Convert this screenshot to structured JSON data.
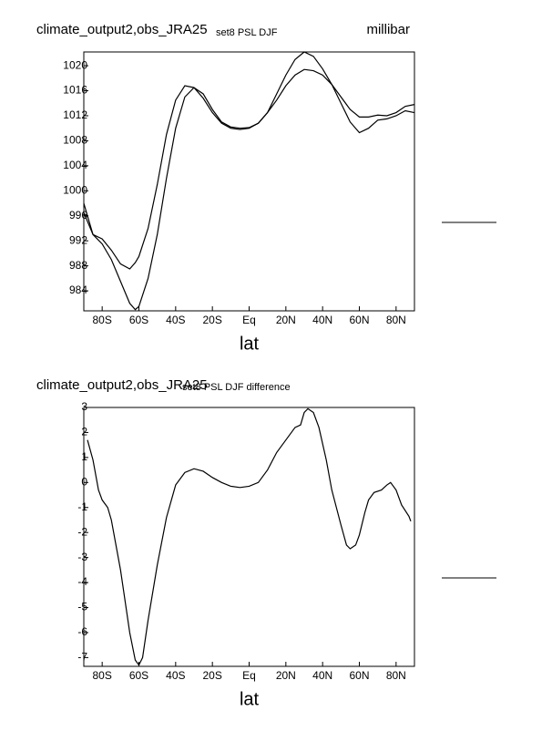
{
  "chart_data": [
    {
      "type": "line",
      "title": "climate_output2,obs_JRA25",
      "subtitle": "set8 PSL DJF",
      "units": "millibar",
      "x_label": "lat",
      "x": [
        -90,
        -85,
        -80,
        -75,
        -70,
        -65,
        -62,
        -60,
        -55,
        -50,
        -45,
        -40,
        -35,
        -30,
        -25,
        -20,
        -15,
        -10,
        -5,
        0,
        5,
        10,
        15,
        20,
        25,
        30,
        35,
        40,
        45,
        50,
        55,
        60,
        65,
        70,
        75,
        80,
        85,
        90
      ],
      "series": [
        {
          "color": "#000000",
          "values": [
            998,
            993,
            991.5,
            989,
            985.5,
            982,
            981,
            981.5,
            986,
            993,
            1002,
            1010,
            1015,
            1016.5,
            1015.5,
            1013,
            1011,
            1010.2,
            1010,
            1010.1,
            1010.8,
            1012.5,
            1015.5,
            1018.5,
            1021,
            1022.2,
            1021.5,
            1019.5,
            1017,
            1014,
            1011,
            1009.3,
            1010,
            1011.3,
            1011.5,
            1012,
            1012.8,
            1012.5
          ]
        },
        {
          "color": "#000000",
          "values": [
            996.5,
            993,
            992.3,
            990.5,
            988.3,
            987.5,
            988.5,
            989.5,
            994,
            1001,
            1009,
            1014.5,
            1016.8,
            1016.5,
            1014.8,
            1012.5,
            1010.8,
            1010,
            1009.8,
            1010,
            1010.8,
            1012.5,
            1014.5,
            1016.8,
            1018.5,
            1019.4,
            1019.2,
            1018.5,
            1017,
            1015,
            1013,
            1011.8,
            1011.8,
            1012.1,
            1012,
            1012.5,
            1013.5,
            1013.8
          ]
        }
      ],
      "xlim": [
        -90,
        90
      ],
      "xticks": [
        {
          "value": -80,
          "label": "80S"
        },
        {
          "value": -60,
          "label": "60S"
        },
        {
          "value": -40,
          "label": "40S"
        },
        {
          "value": -20,
          "label": "20S"
        },
        {
          "value": 0,
          "label": "Eq"
        },
        {
          "value": 20,
          "label": "20N"
        },
        {
          "value": 40,
          "label": "40N"
        },
        {
          "value": 60,
          "label": "60N"
        },
        {
          "value": 80,
          "label": "80N"
        }
      ],
      "ylim": [
        980.8,
        1022.2
      ],
      "yticks": [
        984,
        988,
        992,
        996,
        1000,
        1004,
        1008,
        1012,
        1016,
        1020
      ]
    },
    {
      "type": "line",
      "title": "climate_output2,obs_JRA25",
      "subtitle": "set8 PSL DJF difference",
      "x_label": "lat",
      "x": [
        -88,
        -85,
        -82,
        -80,
        -77,
        -75,
        -70,
        -65,
        -62,
        -60,
        -58,
        -55,
        -50,
        -45,
        -40,
        -35,
        -30,
        -25,
        -20,
        -15,
        -10,
        -5,
        0,
        5,
        10,
        15,
        20,
        25,
        28,
        30,
        32,
        35,
        38,
        42,
        45,
        50,
        53,
        55,
        58,
        60,
        63,
        65,
        68,
        72,
        75,
        77,
        80,
        83,
        87,
        88
      ],
      "series": [
        {
          "color": "#000000",
          "values": [
            1.7,
            0.9,
            -0.3,
            -0.7,
            -1.0,
            -1.5,
            -3.5,
            -6.0,
            -7.1,
            -7.3,
            -7.0,
            -5.5,
            -3.3,
            -1.4,
            -0.1,
            0.4,
            0.55,
            0.45,
            0.2,
            0.0,
            -0.15,
            -0.2,
            -0.15,
            0.0,
            0.5,
            1.2,
            1.7,
            2.2,
            2.3,
            2.8,
            2.95,
            2.8,
            2.2,
            0.9,
            -0.3,
            -1.7,
            -2.5,
            -2.65,
            -2.5,
            -2.1,
            -1.2,
            -0.7,
            -0.4,
            -0.3,
            -0.1,
            0.0,
            -0.3,
            -0.9,
            -1.35,
            -1.55
          ]
        }
      ],
      "xlim": [
        -90,
        90
      ],
      "xticks": [
        {
          "value": -80,
          "label": "80S"
        },
        {
          "value": -60,
          "label": "60S"
        },
        {
          "value": -40,
          "label": "40S"
        },
        {
          "value": -20,
          "label": "20S"
        },
        {
          "value": 0,
          "label": "Eq"
        },
        {
          "value": 20,
          "label": "20N"
        },
        {
          "value": 40,
          "label": "40N"
        },
        {
          "value": 60,
          "label": "60N"
        },
        {
          "value": 80,
          "label": "80N"
        }
      ],
      "ylim": [
        -7.35,
        3
      ],
      "yticks": [
        -7,
        -6,
        -5,
        -4,
        -3,
        -2,
        -1,
        0,
        1,
        2,
        3
      ]
    }
  ]
}
